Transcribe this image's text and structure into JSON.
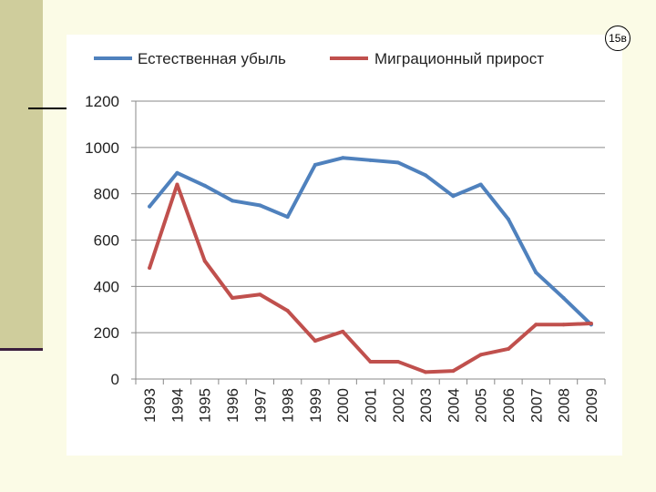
{
  "slide": {
    "badge": "15в"
  },
  "chart_data": {
    "type": "line",
    "categories": [
      "1993",
      "1994",
      "1995",
      "1996",
      "1997",
      "1998",
      "1999",
      "2000",
      "2001",
      "2002",
      "2003",
      "2004",
      "2005",
      "2006",
      "2007",
      "2008",
      "2009"
    ],
    "series": [
      {
        "name": "Естественная убыль",
        "color": "#4f81bd",
        "values": [
          745,
          890,
          835,
          770,
          750,
          700,
          925,
          955,
          945,
          935,
          880,
          790,
          840,
          690,
          460,
          350,
          235
        ]
      },
      {
        "name": "Миграционный прирост",
        "color": "#c0504d",
        "values": [
          480,
          840,
          510,
          350,
          365,
          295,
          165,
          205,
          75,
          75,
          30,
          35,
          105,
          130,
          235,
          235,
          240
        ]
      }
    ],
    "yticks": [
      "0",
      "200",
      "400",
      "600",
      "800",
      "1000",
      "1200"
    ],
    "ylim": [
      0,
      1200
    ],
    "grid": true,
    "legend_position": "top"
  }
}
